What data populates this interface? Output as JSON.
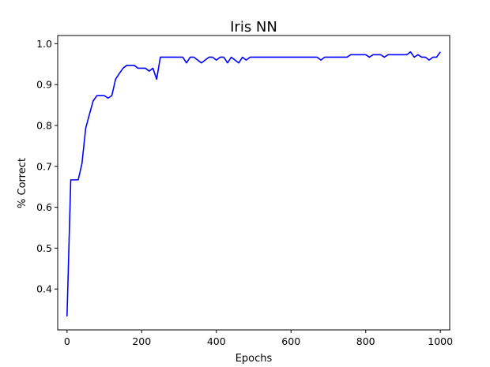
{
  "chart_data": {
    "type": "line",
    "title": "Iris NN",
    "xlabel": "Epochs",
    "ylabel": "% Correct",
    "xlim": [
      -25,
      1025
    ],
    "ylim": [
      0.3,
      1.02
    ],
    "xticks": [
      0,
      200,
      400,
      600,
      800,
      1000
    ],
    "yticks": [
      0.4,
      0.5,
      0.6,
      0.7,
      0.8,
      0.9,
      1.0
    ],
    "xtick_labels": [
      "0",
      "200",
      "400",
      "600",
      "800",
      "1000"
    ],
    "ytick_labels": [
      "0.4",
      "0.5",
      "0.6",
      "0.7",
      "0.8",
      "0.9",
      "1.0"
    ],
    "grid": false,
    "series": [
      {
        "color": "#0000ff",
        "x": [
          0,
          10,
          20,
          30,
          40,
          50,
          60,
          70,
          80,
          90,
          100,
          110,
          120,
          130,
          140,
          150,
          160,
          170,
          180,
          190,
          200,
          210,
          220,
          230,
          240,
          250,
          260,
          270,
          280,
          290,
          300,
          310,
          320,
          330,
          340,
          350,
          360,
          370,
          380,
          390,
          400,
          410,
          420,
          430,
          440,
          450,
          460,
          470,
          480,
          490,
          500,
          510,
          520,
          530,
          540,
          550,
          560,
          570,
          580,
          590,
          600,
          610,
          620,
          630,
          640,
          650,
          660,
          670,
          680,
          690,
          700,
          710,
          720,
          730,
          740,
          750,
          760,
          770,
          780,
          790,
          800,
          810,
          820,
          830,
          840,
          850,
          860,
          870,
          880,
          890,
          900,
          910,
          920,
          930,
          940,
          950,
          960,
          970,
          980,
          990,
          1000
        ],
        "y": [
          0.333,
          0.667,
          0.667,
          0.667,
          0.707,
          0.793,
          0.827,
          0.86,
          0.873,
          0.873,
          0.873,
          0.867,
          0.873,
          0.913,
          0.927,
          0.94,
          0.947,
          0.947,
          0.947,
          0.94,
          0.94,
          0.94,
          0.933,
          0.94,
          0.913,
          0.967,
          0.967,
          0.967,
          0.967,
          0.967,
          0.967,
          0.967,
          0.953,
          0.967,
          0.967,
          0.96,
          0.953,
          0.96,
          0.967,
          0.967,
          0.96,
          0.967,
          0.967,
          0.953,
          0.967,
          0.96,
          0.953,
          0.967,
          0.96,
          0.967,
          0.967,
          0.967,
          0.967,
          0.967,
          0.967,
          0.967,
          0.967,
          0.967,
          0.967,
          0.967,
          0.967,
          0.967,
          0.967,
          0.967,
          0.967,
          0.967,
          0.967,
          0.967,
          0.96,
          0.967,
          0.967,
          0.967,
          0.967,
          0.967,
          0.967,
          0.967,
          0.973,
          0.973,
          0.973,
          0.973,
          0.973,
          0.967,
          0.973,
          0.973,
          0.973,
          0.967,
          0.973,
          0.973,
          0.973,
          0.973,
          0.973,
          0.973,
          0.98,
          0.967,
          0.973,
          0.967,
          0.967,
          0.96,
          0.967,
          0.967,
          0.98
        ]
      }
    ]
  }
}
